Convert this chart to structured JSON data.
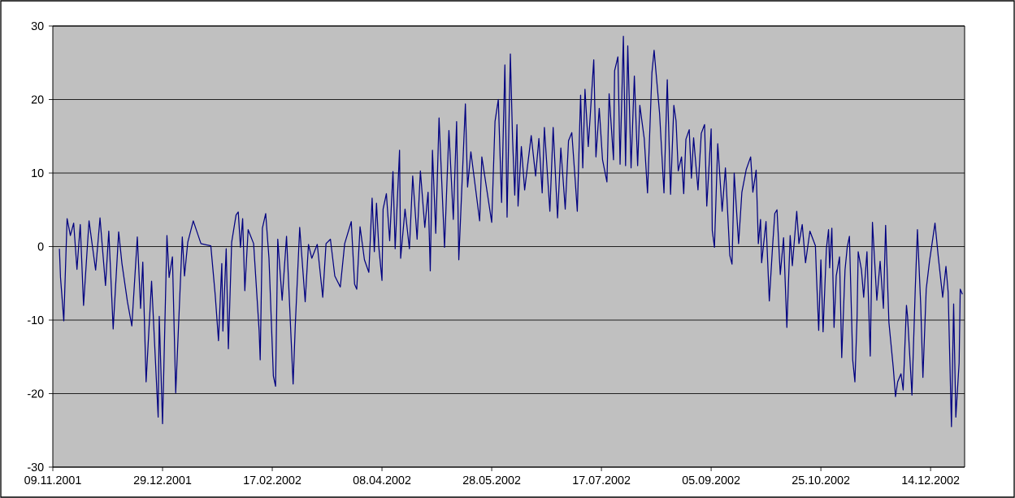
{
  "chart_data": {
    "type": "line",
    "color": "#000080",
    "grid": "y",
    "xlim": [
      "2001-11-09",
      "2002-12-29T12:00"
    ],
    "ylim": [
      -30,
      30
    ],
    "yticks": [
      -30,
      -20,
      -10,
      0,
      10,
      20,
      30
    ],
    "xticks": [
      {
        "value": "2001-11-09",
        "label": "09.11.2001"
      },
      {
        "value": "2001-12-29",
        "label": "29.12.2001"
      },
      {
        "value": "2002-02-17",
        "label": "17.02.2002"
      },
      {
        "value": "2002-04-08",
        "label": "08.04.2002"
      },
      {
        "value": "2002-05-28",
        "label": "28.05.2002"
      },
      {
        "value": "2002-07-17",
        "label": "17.07.2002"
      },
      {
        "value": "2002-09-05",
        "label": "05.09.2002"
      },
      {
        "value": "2002-10-25",
        "label": "25.10.2002"
      },
      {
        "value": "2002-12-14",
        "label": "14.12.2002"
      }
    ],
    "x": [
      "2001-11-12",
      "2001-11-12T12:00",
      "2001-11-14",
      "2001-11-15T12:00",
      "2001-11-17",
      "2001-11-18T12:00",
      "2001-11-20",
      "2001-11-21T12:00",
      "2001-11-23",
      "2001-11-25T12:00",
      "2001-11-28T12:00",
      "2001-11-30T12:00",
      "2001-12-03",
      "2001-12-04T12:00",
      "2001-12-06T12:00",
      "2001-12-09",
      "2001-12-10T12:00",
      "2001-12-13",
      "2001-12-15",
      "2001-12-17T12:00",
      "2001-12-19",
      "2001-12-20",
      "2001-12-21T12:00",
      "2001-12-24",
      "2001-12-27",
      "2001-12-27T12:00",
      "2001-12-29",
      "2001-12-31",
      "2002-01-01",
      "2002-01-02T12:00",
      "2002-01-04",
      "2002-01-07",
      "2002-01-08",
      "2002-01-09T12:00",
      "2002-01-12",
      "2002-01-15T12:00",
      "2002-01-20",
      "2002-01-22",
      "2002-01-23T12:00",
      "2002-01-25",
      "2002-01-25T12:00",
      "2002-01-27",
      "2002-01-28",
      "2002-01-29T12:00",
      "2002-01-31T12:00",
      "2002-02-01T12:00",
      "2002-02-02T12:00",
      "2002-02-03T12:00",
      "2002-02-04T12:00",
      "2002-02-06",
      "2002-02-08T12:00",
      "2002-02-11",
      "2002-02-11T12:00",
      "2002-02-12T12:00",
      "2002-02-14",
      "2002-02-15T12:00",
      "2002-02-17T12:00",
      "2002-02-18T12:00",
      "2002-02-19T12:00",
      "2002-02-21T12:00",
      "2002-02-23T12:00",
      "2002-02-26T12:00",
      "2002-02-27T12:00",
      "2002-03-01T12:00",
      "2002-03-04",
      "2002-03-05T12:00",
      "2002-03-07",
      "2002-03-09T12:00",
      "2002-03-12",
      "2002-03-13T12:00",
      "2002-03-15T12:00",
      "2002-03-17T12:00",
      "2002-03-20",
      "2002-03-22",
      "2002-03-25",
      "2002-03-26T12:00",
      "2002-03-27T12:00",
      "2002-03-29",
      "2002-03-31",
      "2002-04-02",
      "2002-04-03T12:00",
      "2002-04-04T12:00",
      "2002-04-05T12:00",
      "2002-04-06T12:00",
      "2002-04-08",
      "2002-04-08T12:00",
      "2002-04-10",
      "2002-04-11T12:00",
      "2002-04-13",
      "2002-04-14",
      "2002-04-16",
      "2002-04-16T12:00",
      "2002-04-18T12:00",
      "2002-04-20T12:00",
      "2002-04-22",
      "2002-04-24",
      "2002-04-25T12:00",
      "2002-04-27T12:00",
      "2002-04-29",
      "2002-04-30",
      "2002-05-01",
      "2002-05-02T12:00",
      "2002-05-04",
      "2002-05-06T12:00",
      "2002-05-08T12:00",
      "2002-05-10T12:00",
      "2002-05-12",
      "2002-05-13",
      "2002-05-16",
      "2002-05-17",
      "2002-05-18T12:00",
      "2002-05-22T12:00",
      "2002-05-23T12:00",
      "2002-05-28",
      "2002-05-29T12:00",
      "2002-05-31",
      "2002-06-01T12:00",
      "2002-06-03",
      "2002-06-04",
      "2002-06-05T12:00",
      "2002-06-06T12:00",
      "2002-06-07T12:00",
      "2002-06-08T12:00",
      "2002-06-09",
      "2002-06-10T12:00",
      "2002-06-12",
      "2002-06-15",
      "2002-06-17",
      "2002-06-18T12:00",
      "2002-06-20",
      "2002-06-21",
      "2002-06-23T12:00",
      "2002-06-25",
      "2002-06-27",
      "2002-06-28T12:00",
      "2002-06-30T12:00",
      "2002-07-02",
      "2002-07-03T12:00",
      "2002-07-05",
      "2002-07-06",
      "2002-07-07T12:00",
      "2002-07-08T12:00",
      "2002-07-09T12:00",
      "2002-07-11",
      "2002-07-13T12:00",
      "2002-07-14T12:00",
      "2002-07-16",
      "2002-07-17T12:00",
      "2002-07-19T12:00",
      "2002-07-20T12:00",
      "2002-07-22T12:00",
      "2002-07-23",
      "2002-07-24T12:00",
      "2002-07-25T12:00",
      "2002-07-27",
      "2002-07-28",
      "2002-07-29",
      "2002-07-30T12:00",
      "2002-08-01",
      "2002-08-02T12:00",
      "2002-08-03T12:00",
      "2002-08-05T12:00",
      "2002-08-07",
      "2002-08-09",
      "2002-08-10",
      "2002-08-12T12:00",
      "2002-08-14T12:00",
      "2002-08-16",
      "2002-08-17T12:00",
      "2002-08-19",
      "2002-08-20",
      "2002-08-21",
      "2002-08-22T12:00",
      "2002-08-23T12:00",
      "2002-08-24T12:00",
      "2002-08-26",
      "2002-08-27",
      "2002-08-28",
      "2002-08-30",
      "2002-08-31T12:00",
      "2002-09-02",
      "2002-09-03",
      "2002-09-05",
      "2002-09-05T12:00",
      "2002-09-06T12:00",
      "2002-09-08",
      "2002-09-10",
      "2002-09-11T12:00",
      "2002-09-13T12:00",
      "2002-09-14T12:00",
      "2002-09-15T12:00",
      "2002-09-17T12:00",
      "2002-09-19",
      "2002-09-21",
      "2002-09-23",
      "2002-09-24",
      "2002-09-25T12:00",
      "2002-09-26T12:00",
      "2002-09-27T12:00",
      "2002-09-28",
      "2002-09-30",
      "2002-10-01T12:00",
      "2002-10-03",
      "2002-10-04",
      "2002-10-05",
      "2002-10-06T12:00",
      "2002-10-08",
      "2002-10-09T12:00",
      "2002-10-11",
      "2002-10-12",
      "2002-10-14",
      "2002-10-15",
      "2002-10-16T12:00",
      "2002-10-18",
      "2002-10-20",
      "2002-10-22T12:00",
      "2002-10-23",
      "2002-10-24",
      "2002-10-25",
      "2002-10-26",
      "2002-10-27T12:00",
      "2002-10-28T12:00",
      "2002-10-29",
      "2002-10-30",
      "2002-10-31",
      "2002-11-01",
      "2002-11-02T12:00",
      "2002-11-03T12:00",
      "2002-11-05",
      "2002-11-06",
      "2002-11-07",
      "2002-11-08T12:00",
      "2002-11-09T12:00",
      "2002-11-10T12:00",
      "2002-11-11",
      "2002-11-12T12:00",
      "2002-11-13T12:00",
      "2002-11-15",
      "2002-11-16T12:00",
      "2002-11-17T12:00",
      "2002-11-19T12:00",
      "2002-11-21",
      "2002-11-22T12:00",
      "2002-11-23T12:00",
      "2002-11-25",
      "2002-11-27",
      "2002-11-28",
      "2002-11-29",
      "2002-11-30T12:00",
      "2002-12-01T12:00",
      "2002-12-03",
      "2002-12-03T12:00",
      "2002-12-05T12:00",
      "2002-12-07",
      "2002-12-08",
      "2002-12-09T12:00",
      "2002-12-10T12:00",
      "2002-12-12",
      "2002-12-13T12:00",
      "2002-12-16",
      "2002-12-17T12:00",
      "2002-12-19T12:00",
      "2002-12-21",
      "2002-12-22",
      "2002-12-23T12:00",
      "2002-12-24T12:00",
      "2002-12-25T12:00",
      "2002-12-27",
      "2002-12-27T12:00",
      "2002-12-28T12:00"
    ],
    "values": [
      -0.3,
      -4.2,
      -10.1,
      3.8,
      1.5,
      3.2,
      -3.1,
      3.0,
      -8.0,
      3.5,
      -3.2,
      3.9,
      -5.3,
      2.1,
      -11.2,
      2.0,
      -2.3,
      -7.5,
      -10.8,
      1.3,
      -8.4,
      -2.1,
      -18.4,
      -4.7,
      -23.2,
      -9.5,
      -24.1,
      1.5,
      -4.2,
      -1.4,
      -19.9,
      1.3,
      -4.0,
      0.6,
      3.5,
      0.4,
      0.1,
      -6.6,
      -12.8,
      -2.3,
      -11.5,
      -0.3,
      -13.9,
      0.6,
      4.3,
      4.7,
      -0.1,
      3.8,
      -6.0,
      2.3,
      0.4,
      -11.4,
      -15.4,
      2.5,
      4.5,
      -1.6,
      -17.6,
      -19.0,
      1.0,
      -7.3,
      1.4,
      -18.7,
      -10.6,
      2.6,
      -7.5,
      0.3,
      -1.6,
      0.3,
      -6.9,
      0.4,
      1.0,
      -4.0,
      -5.5,
      0.4,
      3.4,
      -5.1,
      -5.8,
      2.7,
      -1.8,
      -3.5,
      6.6,
      -0.7,
      5.9,
      0.1,
      -4.6,
      5.1,
      7.2,
      0.8,
      10.2,
      -0.3,
      13.1,
      -1.6,
      5.1,
      -0.3,
      9.6,
      1.0,
      10.3,
      2.6,
      7.4,
      -3.3,
      13.1,
      1.8,
      17.5,
      -0.1,
      15.8,
      3.7,
      17.0,
      -1.8,
      19.4,
      8.1,
      12.9,
      3.5,
      12.2,
      3.3,
      17.0,
      20.0,
      6.0,
      24.7,
      4.0,
      26.2,
      14.7,
      7.0,
      16.6,
      5.5,
      13.6,
      7.7,
      15.1,
      9.6,
      14.7,
      7.3,
      16.2,
      4.8,
      16.2,
      3.9,
      13.4,
      5.1,
      14.4,
      15.5,
      9.2,
      4.8,
      20.6,
      10.7,
      21.4,
      13.6,
      25.4,
      12.2,
      18.8,
      11.8,
      8.8,
      20.8,
      11.8,
      23.9,
      25.8,
      11.2,
      28.6,
      11.0,
      27.3,
      10.7,
      23.2,
      11.0,
      19.2,
      14.7,
      7.3,
      23.6,
      26.7,
      18.1,
      7.3,
      22.7,
      7.1,
      19.2,
      17.1,
      10.3,
      12.2,
      7.2,
      14.6,
      15.9,
      9.3,
      14.8,
      7.7,
      15.4,
      16.6,
      5.5,
      16.0,
      2.2,
      -0.1,
      14.0,
      4.8,
      10.7,
      -1.2,
      -2.4,
      10.0,
      0.4,
      7.4,
      10.5,
      12.2,
      7.4,
      10.4,
      0.4,
      3.7,
      -2.2,
      3.4,
      -7.4,
      0.1,
      4.5,
      5.0,
      -3.8,
      1.2,
      -11.0,
      1.5,
      -2.6,
      4.8,
      0.4,
      3.0,
      -2.2,
      2.1,
      0.1,
      -4.0,
      -11.4,
      -1.8,
      -11.6,
      -0.3,
      2.3,
      -2.9,
      2.5,
      -11.0,
      -4.0,
      -1.4,
      -15.1,
      -3.2,
      -0.1,
      1.4,
      -15.4,
      -18.4,
      -9.5,
      -0.7,
      -3.2,
      -6.9,
      -0.7,
      -14.9,
      3.3,
      -7.3,
      -2.0,
      -8.4,
      2.9,
      -10.3,
      -16.5,
      -20.4,
      -18.4,
      -17.3,
      -19.5,
      -8.0,
      -9.5,
      -20.2,
      -5.8,
      2.3,
      -8.0,
      -17.8,
      -5.8,
      -2.0,
      3.2,
      -1.4,
      -6.9,
      -2.7,
      -6.2,
      -24.5,
      -7.8,
      -23.2,
      -15.8,
      -5.8,
      -6.5
    ]
  }
}
